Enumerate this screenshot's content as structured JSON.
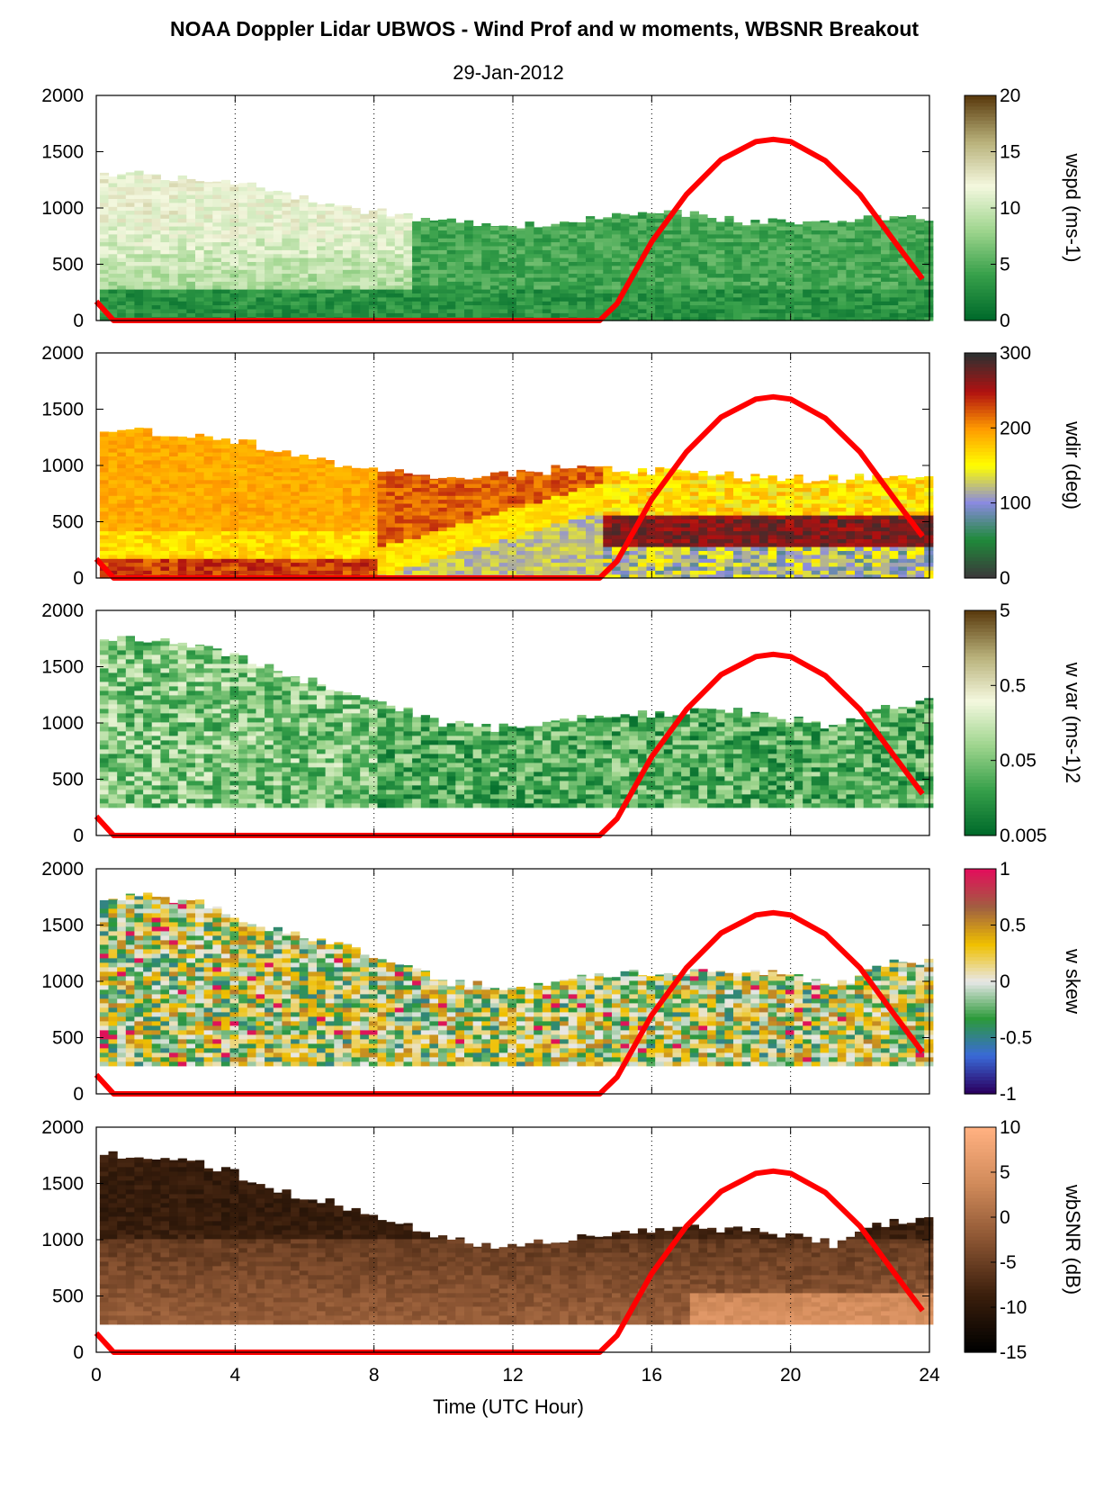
{
  "title": "NOAA Doppler Lidar UBWOS - Wind Prof and w moments, WBSNR Breakout",
  "subtitle": "29-Jan-2012",
  "chart_data": {
    "type": "heatmap",
    "xlabel": "Time (UTC Hour)",
    "xlim": [
      0,
      24
    ],
    "xticks": [
      0,
      4,
      8,
      12,
      16,
      20,
      24
    ],
    "ylim": [
      0,
      2000
    ],
    "yticks": [
      0,
      500,
      1000,
      1500,
      2000
    ],
    "grid": "vertical dotted at x ticks",
    "overlay_line": {
      "color": "#ff0000",
      "x": [
        0,
        0.5,
        14.5,
        15,
        16,
        17,
        18,
        19,
        19.5,
        20,
        21,
        22,
        23,
        23.8
      ],
      "y": [
        170,
        0,
        0,
        150,
        700,
        1120,
        1430,
        1590,
        1610,
        1590,
        1420,
        1120,
        700,
        370
      ]
    },
    "panels": [
      {
        "id": "wspd",
        "colorbar_label": "wspd (ms-1)",
        "colorbar_ticks": [
          "20",
          "15",
          "10",
          "5",
          "0"
        ],
        "colormap": [
          "#006a2b",
          "#37a04a",
          "#9fd58e",
          "#f4f8df",
          "#b8b17a",
          "#5c3d10"
        ],
        "top_height_m": [
          1300,
          1300,
          1250,
          1200,
          1100,
          1000,
          950,
          880,
          850,
          860,
          900,
          960,
          960,
          880,
          870,
          880,
          930,
          900
        ],
        "bottom_height_m": 0,
        "surface_value": "low (dark green), 9-12 ms-1 aloft before 8 UTC"
      },
      {
        "id": "wdir",
        "colorbar_label": "wdir (deg)",
        "colorbar_ticks": [
          "300",
          "200",
          "100",
          "0"
        ],
        "colormap": [
          "#3a3a3a",
          "#1f8a3a",
          "#8a8ae0",
          "#ffff00",
          "#ff9a00",
          "#b01010",
          "#303030"
        ],
        "top_height_m": [
          1300,
          1300,
          1250,
          1200,
          1100,
          1000,
          950,
          900,
          900,
          950,
          1000,
          950,
          950,
          900,
          880,
          880,
          900,
          900
        ],
        "bottom_height_m": 0
      },
      {
        "id": "wvar",
        "colorbar_label": "w var (ms-1)2",
        "colorbar_ticks": [
          "5",
          "0.5",
          "0.05",
          "0.005"
        ],
        "colormap": [
          "#006a2b",
          "#37a04a",
          "#9fd58e",
          "#f4f8df",
          "#b8b17a",
          "#5c3d10"
        ],
        "top_height_m": [
          1750,
          1750,
          1700,
          1550,
          1400,
          1300,
          1150,
          1000,
          950,
          980,
          1050,
          1080,
          1100,
          1100,
          1050,
          950,
          1150,
          1200
        ],
        "bottom_height_m": 250
      },
      {
        "id": "wskew",
        "colorbar_label": "w skew",
        "colorbar_ticks": [
          "1",
          "0.5",
          "0",
          "-0.5",
          "-1"
        ],
        "colormap": [
          "#2a0060",
          "#3a6ad8",
          "#2c9a3a",
          "#e8e8e8",
          "#f0c000",
          "#a06040",
          "#e0105a"
        ],
        "top_height_m": [
          1750,
          1750,
          1700,
          1550,
          1400,
          1300,
          1150,
          1000,
          950,
          980,
          1050,
          1080,
          1100,
          1100,
          1050,
          950,
          1150,
          1200
        ],
        "bottom_height_m": 250
      },
      {
        "id": "wbsnr",
        "colorbar_label": "wbSNR (dB)",
        "colorbar_ticks": [
          "10",
          "5",
          "0",
          "-5",
          "-10",
          "-15"
        ],
        "colormap": [
          "#000000",
          "#3a1e0c",
          "#8a5432",
          "#d08a5a",
          "#ffb080"
        ],
        "top_height_m": [
          1750,
          1750,
          1700,
          1550,
          1400,
          1300,
          1150,
          1000,
          950,
          980,
          1050,
          1080,
          1100,
          1100,
          1050,
          950,
          1150,
          1200
        ],
        "bottom_height_m": 250
      }
    ]
  }
}
